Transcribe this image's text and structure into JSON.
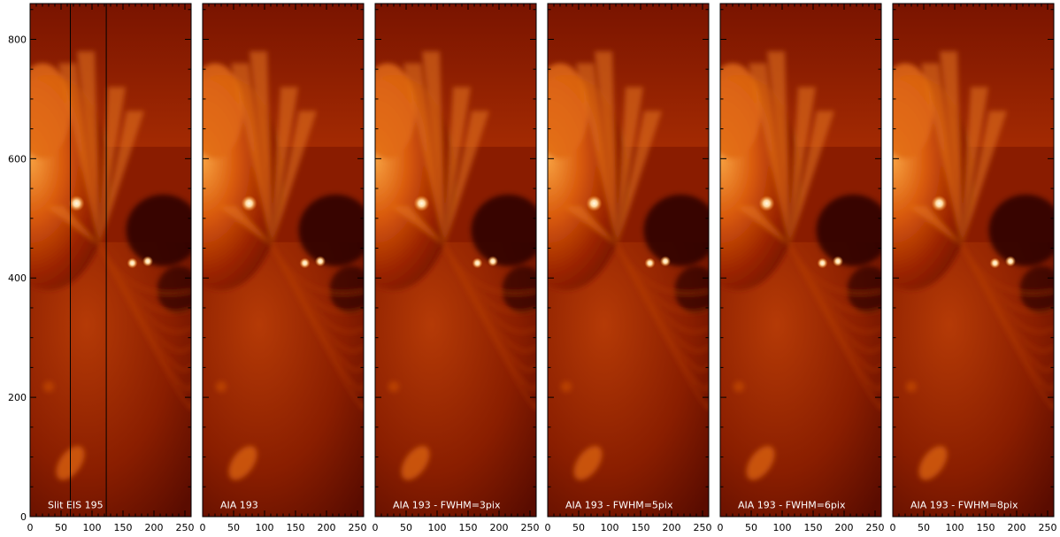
{
  "panels": [
    {
      "label": "Slit EIS 195",
      "slit_lines_x": [
        65,
        123
      ]
    },
    {
      "label": "AIA 193"
    },
    {
      "label": "AIA 193 - FWHM=3pix"
    },
    {
      "label": "AIA 193 - FWHM=5pix"
    },
    {
      "label": "AIA 193 - FWHM=6pix"
    },
    {
      "label": "AIA 193 - FWHM=8pix"
    }
  ],
  "x_axis": {
    "range": [
      0,
      260
    ],
    "tick_labels": [
      "0",
      "50",
      "100",
      "150",
      "200",
      "250"
    ]
  },
  "y_axis": {
    "range": [
      0,
      860
    ],
    "tick_labels": [
      "0",
      "200",
      "400",
      "600",
      "800"
    ]
  },
  "colors": {
    "colormap": [
      "#1a0000",
      "#5a0900",
      "#9a2000",
      "#d94800",
      "#f48a1e",
      "#ffd9a0",
      "#fffbe8"
    ]
  }
}
